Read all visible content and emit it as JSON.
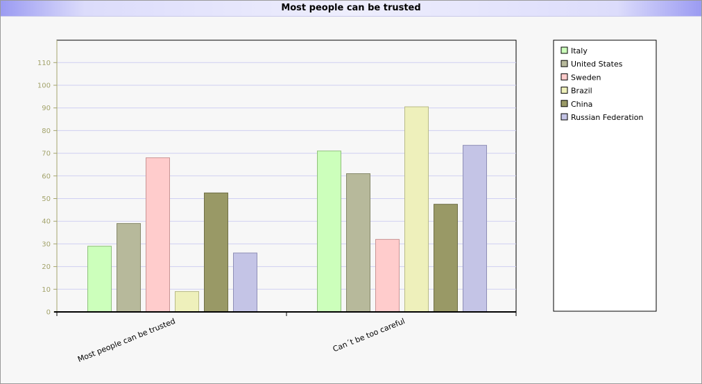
{
  "chart_data": {
    "type": "bar",
    "title": "Most people can be trusted",
    "categories": [
      "Most people can be trusted",
      "Can´t be too careful"
    ],
    "ylim": [
      0,
      120
    ],
    "yticks": [
      0,
      10,
      20,
      30,
      40,
      50,
      60,
      70,
      80,
      90,
      100,
      110
    ],
    "grid": true,
    "legend_position": "right",
    "series": [
      {
        "name": "Italy",
        "color": "#ccffbb",
        "stroke": "#8fc07a",
        "values": [
          29,
          71
        ]
      },
      {
        "name": "United States",
        "color": "#b7b99b",
        "stroke": "#86886a",
        "values": [
          39,
          61
        ]
      },
      {
        "name": "Sweden",
        "color": "#ffcccc",
        "stroke": "#c99494",
        "values": [
          68,
          32
        ]
      },
      {
        "name": "Brazil",
        "color": "#eef0bb",
        "stroke": "#b8ba86",
        "values": [
          9,
          90.5
        ]
      },
      {
        "name": "China",
        "color": "#999966",
        "stroke": "#6e6e45",
        "values": [
          52.5,
          47.5
        ]
      },
      {
        "name": "Russian Federation",
        "color": "#c4c4e6",
        "stroke": "#8e8eb6",
        "values": [
          26,
          73.5
        ]
      }
    ]
  }
}
